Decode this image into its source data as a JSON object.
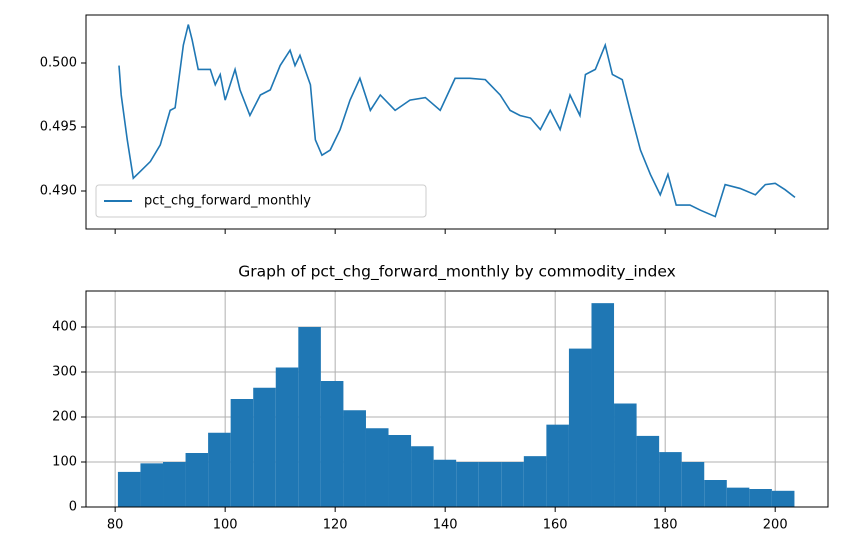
{
  "chart_data": [
    {
      "type": "line",
      "series": [
        {
          "name": "pct_chg_forward_monthly",
          "color": "#1f77b4",
          "x": [
            80.7,
            81.1,
            82.2,
            83.3,
            84.5,
            86.4,
            88.2,
            90.0,
            90.9,
            92.4,
            93.3,
            94.0,
            95.1,
            97.3,
            98.2,
            99.1,
            100.0,
            101.8,
            102.7,
            104.5,
            106.4,
            108.2,
            110.0,
            111.8,
            112.7,
            113.6,
            115.5,
            116.4,
            117.6,
            119.1,
            120.9,
            122.7,
            124.5,
            126.4,
            128.2,
            130.9,
            133.6,
            136.4,
            139.1,
            141.8,
            144.5,
            147.3,
            150.0,
            151.8,
            153.6,
            155.5,
            157.3,
            159.1,
            160.9,
            162.7,
            164.5,
            165.5,
            167.3,
            169.1,
            170.4,
            172.2,
            173.6,
            175.5,
            177.3,
            179.1,
            180.5,
            182.0,
            184.5,
            186.4,
            189.1,
            190.9,
            193.6,
            196.4,
            198.2,
            200.0,
            201.8,
            203.6
          ],
          "values": [
            0.4998,
            0.4975,
            0.494,
            0.491,
            0.4915,
            0.4923,
            0.4936,
            0.4963,
            0.4965,
            0.5014,
            0.503,
            0.5018,
            0.4995,
            0.4995,
            0.4983,
            0.4991,
            0.4971,
            0.4995,
            0.4979,
            0.4959,
            0.4975,
            0.4979,
            0.4998,
            0.501,
            0.4998,
            0.5006,
            0.4983,
            0.494,
            0.4928,
            0.4932,
            0.4948,
            0.4971,
            0.4988,
            0.4963,
            0.4975,
            0.4963,
            0.4971,
            0.4973,
            0.4963,
            0.4988,
            0.4988,
            0.4987,
            0.4975,
            0.4963,
            0.4959,
            0.4957,
            0.4948,
            0.4963,
            0.4948,
            0.4975,
            0.4959,
            0.4991,
            0.4995,
            0.5014,
            0.4991,
            0.4987,
            0.4963,
            0.4932,
            0.4913,
            0.4897,
            0.4913,
            0.4889,
            0.4889,
            0.4885,
            0.488,
            0.4905,
            0.4902,
            0.4897,
            0.4905,
            0.4906,
            0.4901,
            0.4895
          ]
        }
      ],
      "xlim": [
        74.7,
        209.6
      ],
      "ylim": [
        0.48703,
        0.50375
      ],
      "yticks": [
        {
          "value": 0.49,
          "label": "0.490"
        },
        {
          "value": 0.495,
          "label": "0.495"
        },
        {
          "value": 0.5,
          "label": "0.500"
        }
      ],
      "legend": "lower left",
      "grid": false
    },
    {
      "type": "histogram",
      "title": "Graph of pct_chg_forward_monthly by commodity_index",
      "bins": [
        80.5,
        84.6,
        88.7,
        92.8,
        96.9,
        101.0,
        105.1,
        109.2,
        113.3,
        117.4,
        121.5,
        125.6,
        129.7,
        133.8,
        137.9,
        142.0,
        146.1,
        150.2,
        154.3,
        158.4,
        162.5,
        166.6,
        170.7,
        174.8,
        178.9,
        183.0,
        187.1,
        191.2,
        195.3,
        199.4,
        203.5
      ],
      "values": [
        78,
        97,
        100,
        120,
        165,
        240,
        265,
        310,
        400,
        280,
        215,
        175,
        160,
        135,
        105,
        100,
        100,
        100,
        113,
        183,
        352,
        453,
        230,
        158,
        122,
        100,
        60,
        43,
        40,
        36
      ],
      "color": "#1f77b4",
      "xlim": [
        74.7,
        209.6
      ],
      "ylim": [
        0,
        480
      ],
      "xticks": [
        80,
        100,
        120,
        140,
        160,
        180,
        200
      ],
      "yticks": [
        0,
        100,
        200,
        300,
        400
      ],
      "grid": true
    }
  ]
}
